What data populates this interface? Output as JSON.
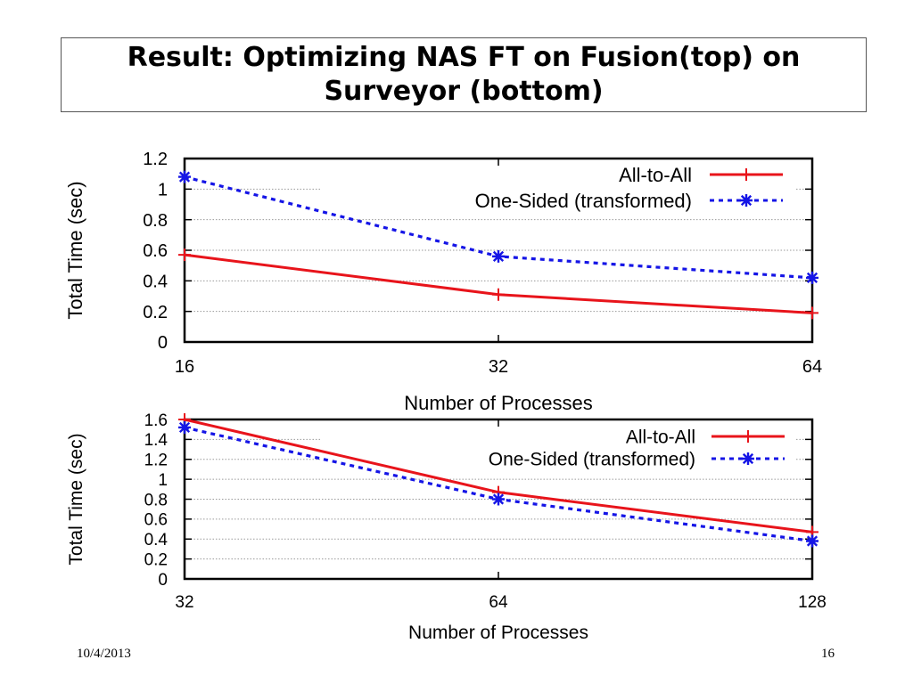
{
  "slide": {
    "title": "Result: Optimizing NAS FT on Fusion(top) on Surveyor (bottom)",
    "date": "10/4/2013",
    "page_number": "16"
  },
  "colors": {
    "all_to_all": "#e8141b",
    "one_sided": "#1515e6",
    "grid": "#9a9a9a",
    "axis": "#000000"
  },
  "chart_data": [
    {
      "id": "top",
      "type": "line",
      "title": "",
      "xlabel": "Number of Processes",
      "ylabel": "Total Time (sec)",
      "x_scale": "log2",
      "categories": [
        "16",
        "32",
        "64"
      ],
      "x": [
        16,
        32,
        64
      ],
      "ylim": [
        0,
        1.2
      ],
      "yticks": [
        0,
        0.2,
        0.4,
        0.6,
        0.8,
        1,
        1.2
      ],
      "ytick_labels": [
        "0",
        "0.2",
        "0.4",
        "0.6",
        "0.8",
        "1",
        "1.2"
      ],
      "grid": true,
      "legend_position": "top-right",
      "series": [
        {
          "name": "All-to-All",
          "values": [
            0.57,
            0.31,
            0.19
          ],
          "style": "solid",
          "marker": "plus"
        },
        {
          "name": "One-Sided (transformed)",
          "values": [
            1.08,
            0.56,
            0.42
          ],
          "style": "dotted",
          "marker": "star"
        }
      ]
    },
    {
      "id": "bottom",
      "type": "line",
      "title": "",
      "xlabel": "Number of Processes",
      "ylabel": "Total Time (sec)",
      "x_scale": "log2",
      "categories": [
        "32",
        "64",
        "128"
      ],
      "x": [
        32,
        64,
        128
      ],
      "ylim": [
        0,
        1.6
      ],
      "yticks": [
        0,
        0.2,
        0.4,
        0.6,
        0.8,
        1,
        1.2,
        1.4,
        1.6
      ],
      "ytick_labels": [
        "0",
        "0.2",
        "0.4",
        "0.6",
        "0.8",
        "1",
        "1.2",
        "1.4",
        "1.6"
      ],
      "grid": true,
      "legend_position": "top-right",
      "series": [
        {
          "name": "All-to-All",
          "values": [
            1.6,
            0.87,
            0.47
          ],
          "style": "solid",
          "marker": "plus"
        },
        {
          "name": "One-Sided (transformed)",
          "values": [
            1.52,
            0.8,
            0.38
          ],
          "style": "dotted",
          "marker": "star"
        }
      ]
    }
  ]
}
